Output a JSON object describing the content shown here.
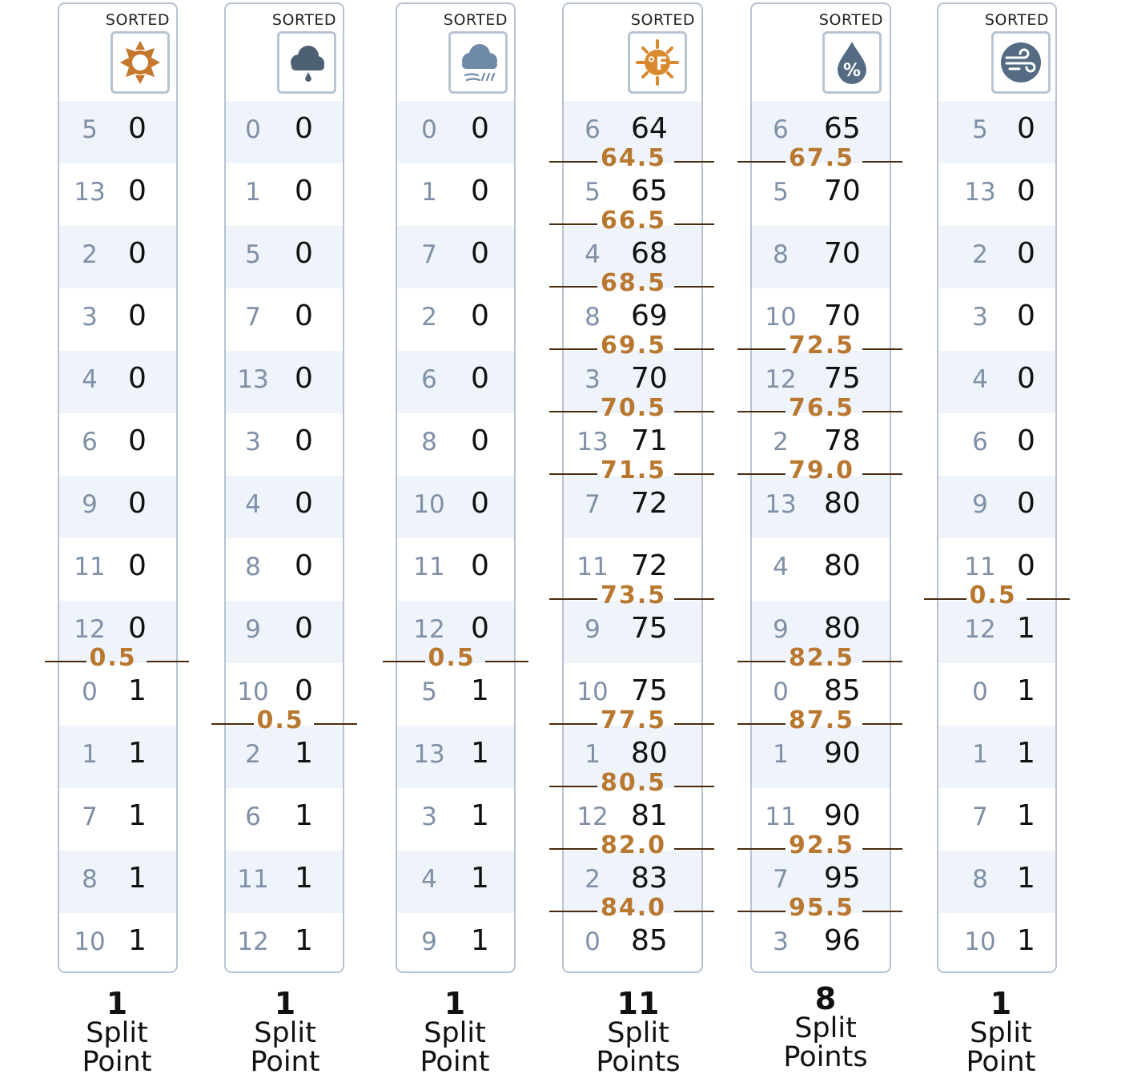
{
  "columns": [
    {
      "name": "outlook-sunny",
      "icon": "sun-icon",
      "header_label": "SORTED",
      "rows": [
        {
          "idx": "5",
          "val": "0"
        },
        {
          "idx": "13",
          "val": "0"
        },
        {
          "idx": "2",
          "val": "0"
        },
        {
          "idx": "3",
          "val": "0"
        },
        {
          "idx": "4",
          "val": "0"
        },
        {
          "idx": "6",
          "val": "0"
        },
        {
          "idx": "9",
          "val": "0"
        },
        {
          "idx": "11",
          "val": "0"
        },
        {
          "idx": "12",
          "val": "0"
        },
        {
          "idx": "0",
          "val": "1"
        },
        {
          "idx": "1",
          "val": "1"
        },
        {
          "idx": "7",
          "val": "1"
        },
        {
          "idx": "8",
          "val": "1"
        },
        {
          "idx": "10",
          "val": "1"
        }
      ],
      "splits": [
        {
          "after_row": 9,
          "label": "0.5"
        }
      ],
      "footer": {
        "count": "1",
        "line1": "Split",
        "line2": "Point"
      }
    },
    {
      "name": "outlook-rain",
      "icon": "rain-cloud-icon",
      "header_label": "SORTED",
      "rows": [
        {
          "idx": "0",
          "val": "0"
        },
        {
          "idx": "1",
          "val": "0"
        },
        {
          "idx": "5",
          "val": "0"
        },
        {
          "idx": "7",
          "val": "0"
        },
        {
          "idx": "13",
          "val": "0"
        },
        {
          "idx": "3",
          "val": "0"
        },
        {
          "idx": "4",
          "val": "0"
        },
        {
          "idx": "8",
          "val": "0"
        },
        {
          "idx": "9",
          "val": "0"
        },
        {
          "idx": "10",
          "val": "0"
        },
        {
          "idx": "2",
          "val": "1"
        },
        {
          "idx": "6",
          "val": "1"
        },
        {
          "idx": "11",
          "val": "1"
        },
        {
          "idx": "12",
          "val": "1"
        }
      ],
      "splits": [
        {
          "after_row": 10,
          "label": "0.5"
        }
      ],
      "footer": {
        "count": "1",
        "line1": "Split",
        "line2": "Point"
      }
    },
    {
      "name": "outlook-overcast",
      "icon": "overcast-wind-icon",
      "header_label": "SORTED",
      "rows": [
        {
          "idx": "0",
          "val": "0"
        },
        {
          "idx": "1",
          "val": "0"
        },
        {
          "idx": "7",
          "val": "0"
        },
        {
          "idx": "2",
          "val": "0"
        },
        {
          "idx": "6",
          "val": "0"
        },
        {
          "idx": "8",
          "val": "0"
        },
        {
          "idx": "10",
          "val": "0"
        },
        {
          "idx": "11",
          "val": "0"
        },
        {
          "idx": "12",
          "val": "0"
        },
        {
          "idx": "5",
          "val": "1"
        },
        {
          "idx": "13",
          "val": "1"
        },
        {
          "idx": "3",
          "val": "1"
        },
        {
          "idx": "4",
          "val": "1"
        },
        {
          "idx": "9",
          "val": "1"
        }
      ],
      "splits": [
        {
          "after_row": 9,
          "label": "0.5"
        }
      ],
      "footer": {
        "count": "1",
        "line1": "Split",
        "line2": "Point"
      }
    },
    {
      "name": "temperature",
      "icon": "temperature-sun-icon",
      "header_label": "SORTED",
      "rows": [
        {
          "idx": "6",
          "val": "64"
        },
        {
          "idx": "5",
          "val": "65"
        },
        {
          "idx": "4",
          "val": "68"
        },
        {
          "idx": "8",
          "val": "69"
        },
        {
          "idx": "3",
          "val": "70"
        },
        {
          "idx": "13",
          "val": "71"
        },
        {
          "idx": "7",
          "val": "72"
        },
        {
          "idx": "11",
          "val": "72"
        },
        {
          "idx": "9",
          "val": "75"
        },
        {
          "idx": "10",
          "val": "75"
        },
        {
          "idx": "1",
          "val": "80"
        },
        {
          "idx": "12",
          "val": "81"
        },
        {
          "idx": "2",
          "val": "83"
        },
        {
          "idx": "0",
          "val": "85"
        }
      ],
      "splits": [
        {
          "after_row": 1,
          "label": "64.5"
        },
        {
          "after_row": 2,
          "label": "66.5"
        },
        {
          "after_row": 3,
          "label": "68.5"
        },
        {
          "after_row": 4,
          "label": "69.5"
        },
        {
          "after_row": 5,
          "label": "70.5"
        },
        {
          "after_row": 6,
          "label": "71.5"
        },
        {
          "after_row": 8,
          "label": "73.5"
        },
        {
          "after_row": 10,
          "label": "77.5"
        },
        {
          "after_row": 11,
          "label": "80.5"
        },
        {
          "after_row": 12,
          "label": "82.0"
        },
        {
          "after_row": 13,
          "label": "84.0"
        }
      ],
      "footer": {
        "count": "11",
        "line1": "Split",
        "line2": "Points"
      }
    },
    {
      "name": "humidity",
      "icon": "humidity-drop-icon",
      "header_label": "SORTED",
      "rows": [
        {
          "idx": "6",
          "val": "65"
        },
        {
          "idx": "5",
          "val": "70"
        },
        {
          "idx": "8",
          "val": "70"
        },
        {
          "idx": "10",
          "val": "70"
        },
        {
          "idx": "12",
          "val": "75"
        },
        {
          "idx": "2",
          "val": "78"
        },
        {
          "idx": "13",
          "val": "80"
        },
        {
          "idx": "4",
          "val": "80"
        },
        {
          "idx": "9",
          "val": "80"
        },
        {
          "idx": "0",
          "val": "85"
        },
        {
          "idx": "1",
          "val": "90"
        },
        {
          "idx": "11",
          "val": "90"
        },
        {
          "idx": "7",
          "val": "95"
        },
        {
          "idx": "3",
          "val": "96"
        }
      ],
      "splits": [
        {
          "after_row": 1,
          "label": "67.5"
        },
        {
          "after_row": 4,
          "label": "72.5"
        },
        {
          "after_row": 5,
          "label": "76.5"
        },
        {
          "after_row": 6,
          "label": "79.0"
        },
        {
          "after_row": 9,
          "label": "82.5"
        },
        {
          "after_row": 10,
          "label": "87.5"
        },
        {
          "after_row": 12,
          "label": "92.5"
        },
        {
          "after_row": 13,
          "label": "95.5"
        }
      ],
      "footer": {
        "count": "8",
        "line1": "Split",
        "line2": "Points"
      }
    },
    {
      "name": "wind",
      "icon": "wind-icon",
      "header_label": "SORTED",
      "rows": [
        {
          "idx": "5",
          "val": "0"
        },
        {
          "idx": "13",
          "val": "0"
        },
        {
          "idx": "2",
          "val": "0"
        },
        {
          "idx": "3",
          "val": "0"
        },
        {
          "idx": "4",
          "val": "0"
        },
        {
          "idx": "6",
          "val": "0"
        },
        {
          "idx": "9",
          "val": "0"
        },
        {
          "idx": "11",
          "val": "0"
        },
        {
          "idx": "12",
          "val": "1"
        },
        {
          "idx": "0",
          "val": "1"
        },
        {
          "idx": "1",
          "val": "1"
        },
        {
          "idx": "7",
          "val": "1"
        },
        {
          "idx": "8",
          "val": "1"
        },
        {
          "idx": "10",
          "val": "1"
        }
      ],
      "splits": [
        {
          "after_row": 8,
          "label": "0.5"
        }
      ],
      "footer": {
        "count": "1",
        "line1": "Split",
        "line2": "Point"
      }
    }
  ]
}
